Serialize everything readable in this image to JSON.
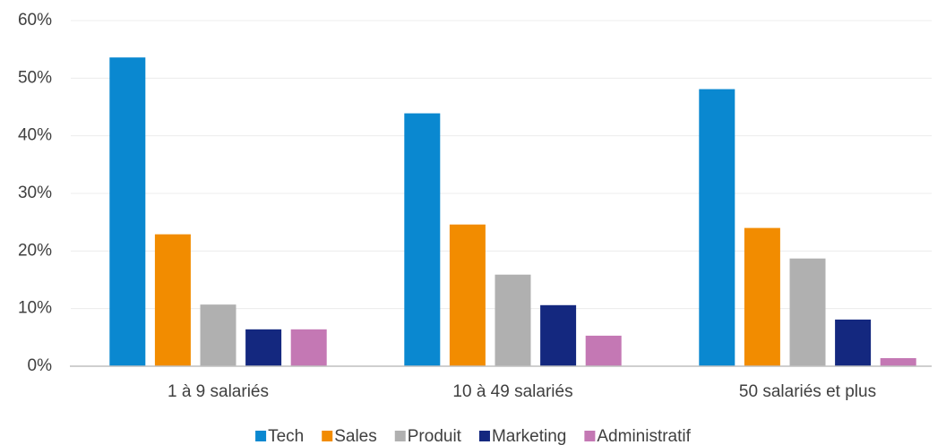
{
  "chart_data": {
    "type": "bar",
    "categories": [
      "1 à 9 salariés",
      "10 à 49 salariés",
      "50 salariés et plus"
    ],
    "series": [
      {
        "name": "Tech",
        "color": "#0a88d0",
        "values": [
          53.6,
          43.9,
          48.1
        ]
      },
      {
        "name": "Sales",
        "color": "#f28c00",
        "values": [
          22.9,
          24.6,
          24.0
        ]
      },
      {
        "name": "Produit",
        "color": "#b0b0b0",
        "values": [
          10.7,
          15.9,
          18.7
        ]
      },
      {
        "name": "Marketing",
        "color": "#14287f",
        "values": [
          6.4,
          10.6,
          8.1
        ]
      },
      {
        "name": "Administratif",
        "color": "#c478b4",
        "values": [
          6.4,
          5.3,
          1.4
        ]
      }
    ],
    "ylim": [
      0,
      60
    ],
    "yticks": [
      {
        "value": 0,
        "label": "0%"
      },
      {
        "value": 10,
        "label": "10%"
      },
      {
        "value": 20,
        "label": "20%"
      },
      {
        "value": 30,
        "label": "30%"
      },
      {
        "value": 40,
        "label": "40%"
      },
      {
        "value": 50,
        "label": "50%"
      },
      {
        "value": 60,
        "label": "60%"
      }
    ],
    "grid": true,
    "legend": "bottom"
  }
}
